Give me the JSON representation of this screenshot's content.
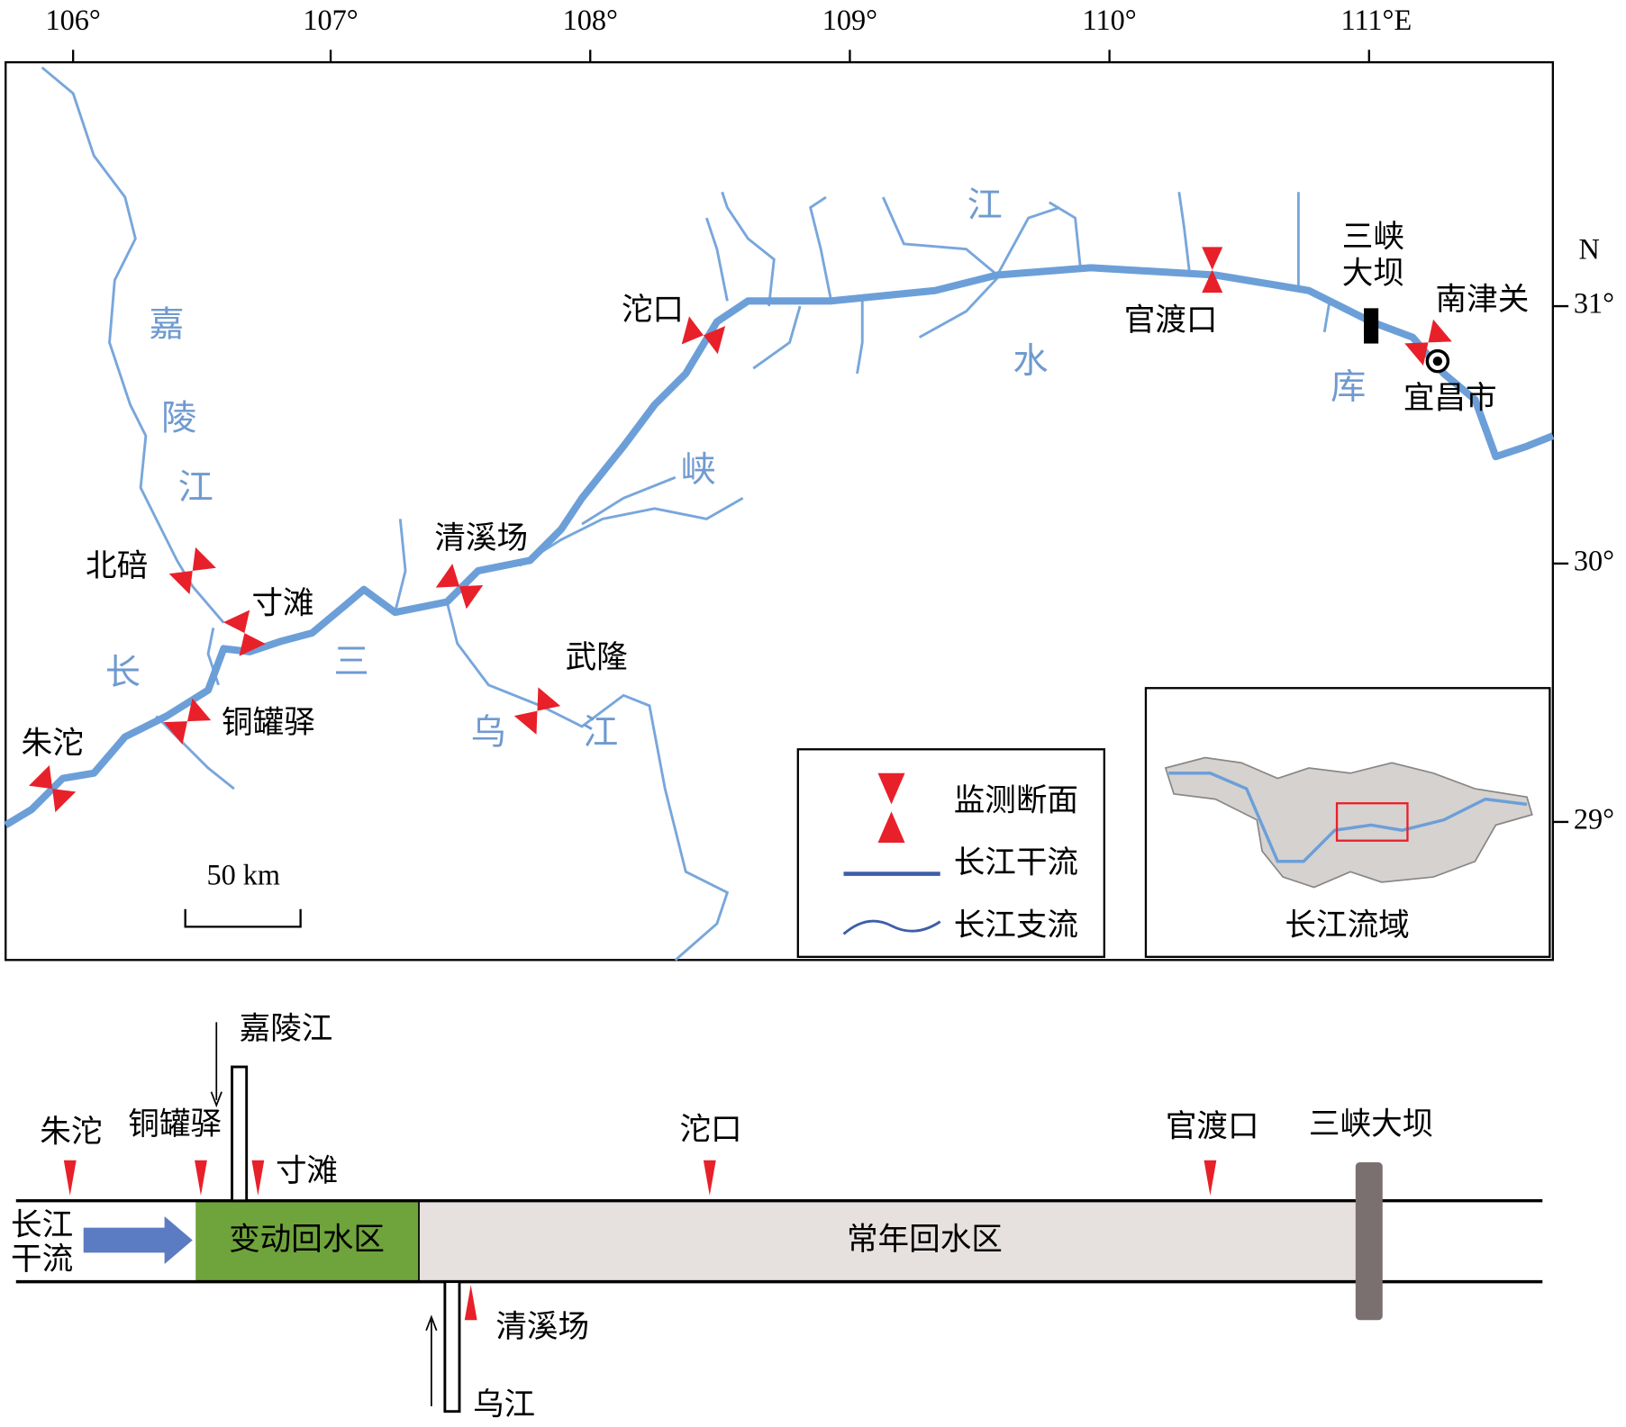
{
  "map": {
    "longitude_labels": [
      "106°",
      "107°",
      "108°",
      "109°",
      "110°",
      "111°E"
    ],
    "latitude_labels": [
      "N",
      "31°",
      "30°",
      "29°"
    ],
    "stations": [
      "朱沱",
      "铜罐驿",
      "寸滩",
      "北碚",
      "清溪场",
      "武隆",
      "沱口",
      "官渡口",
      "南津关"
    ],
    "dam_label": [
      "三峡",
      "大坝"
    ],
    "city": "宜昌市",
    "water_labels": [
      "嘉",
      "陵",
      "江",
      "长",
      "三",
      "峡",
      "江",
      "水",
      "库",
      "乌",
      "江"
    ],
    "scale_bar": "50 km",
    "legend": [
      "监测断面",
      "长江干流",
      "长江支流"
    ],
    "inset_title": "长江流域"
  },
  "schematic": {
    "stations": [
      "朱沱",
      "铜罐驿",
      "寸滩",
      "沱口",
      "官渡口"
    ],
    "jialing": "嘉陵江",
    "qingxichang": "清溪场",
    "wujiang": "乌江",
    "dam": "三峡大坝",
    "inflow": [
      "长江",
      "干流"
    ],
    "zones": [
      "变动回水区",
      "常年回水区"
    ]
  }
}
